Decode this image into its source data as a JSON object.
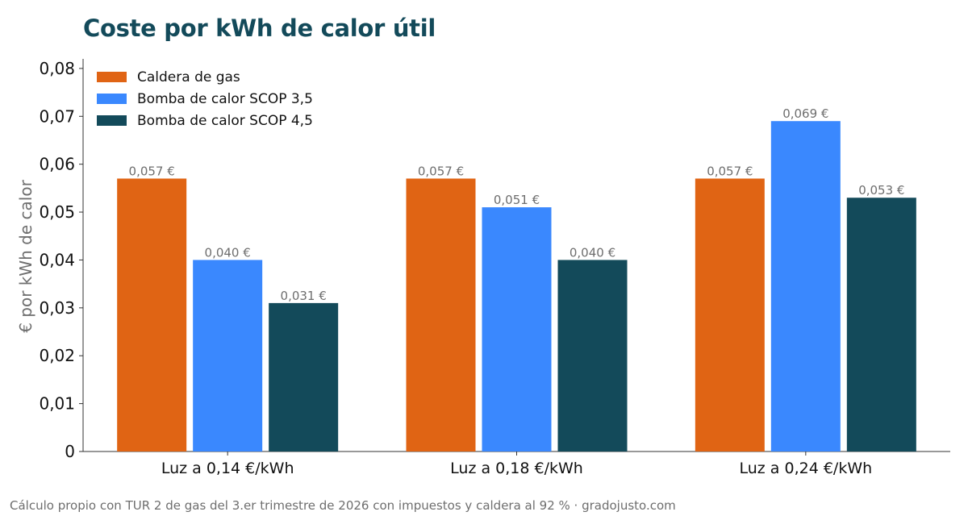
{
  "title": "Coste por kWh de calor útil",
  "footer": "Cálculo propio con TUR 2 de gas del 3.er trimestre de 2026 con impuestos y caldera al 92 %  ·  gradojusto.com",
  "chart_data": {
    "type": "bar",
    "title": "Coste por kWh de calor útil",
    "xlabel": "",
    "ylabel": "€ por kWh de calor",
    "ylim": [
      0,
      0.082
    ],
    "yticks": [
      0,
      0.01,
      0.02,
      0.03,
      0.04,
      0.05,
      0.06,
      0.07,
      0.08
    ],
    "ytick_labels": [
      "0",
      "0,01",
      "0,02",
      "0,03",
      "0,04",
      "0,05",
      "0,06",
      "0,07",
      "0,08"
    ],
    "grid": false,
    "legend_position": "top-left",
    "categories": [
      "Luz a 0,14 €/kWh",
      "Luz a 0,18 €/kWh",
      "Luz a 0,24 €/kWh"
    ],
    "series": [
      {
        "name": "Caldera de gas",
        "color": "#e06414",
        "values": [
          0.057,
          0.057,
          0.057
        ],
        "labels": [
          "0,057 €",
          "0,057 €",
          "0,057 €"
        ]
      },
      {
        "name": "Bomba de calor SCOP 3,5",
        "color": "#3a88fe",
        "values": [
          0.04,
          0.051,
          0.069
        ],
        "labels": [
          "0,040 €",
          "0,051 €",
          "0,069 €"
        ]
      },
      {
        "name": "Bomba de calor SCOP 4,5",
        "color": "#134a5a",
        "values": [
          0.031,
          0.04,
          0.053
        ],
        "labels": [
          "0,031 €",
          "0,040 €",
          "0,053 €"
        ]
      }
    ]
  }
}
